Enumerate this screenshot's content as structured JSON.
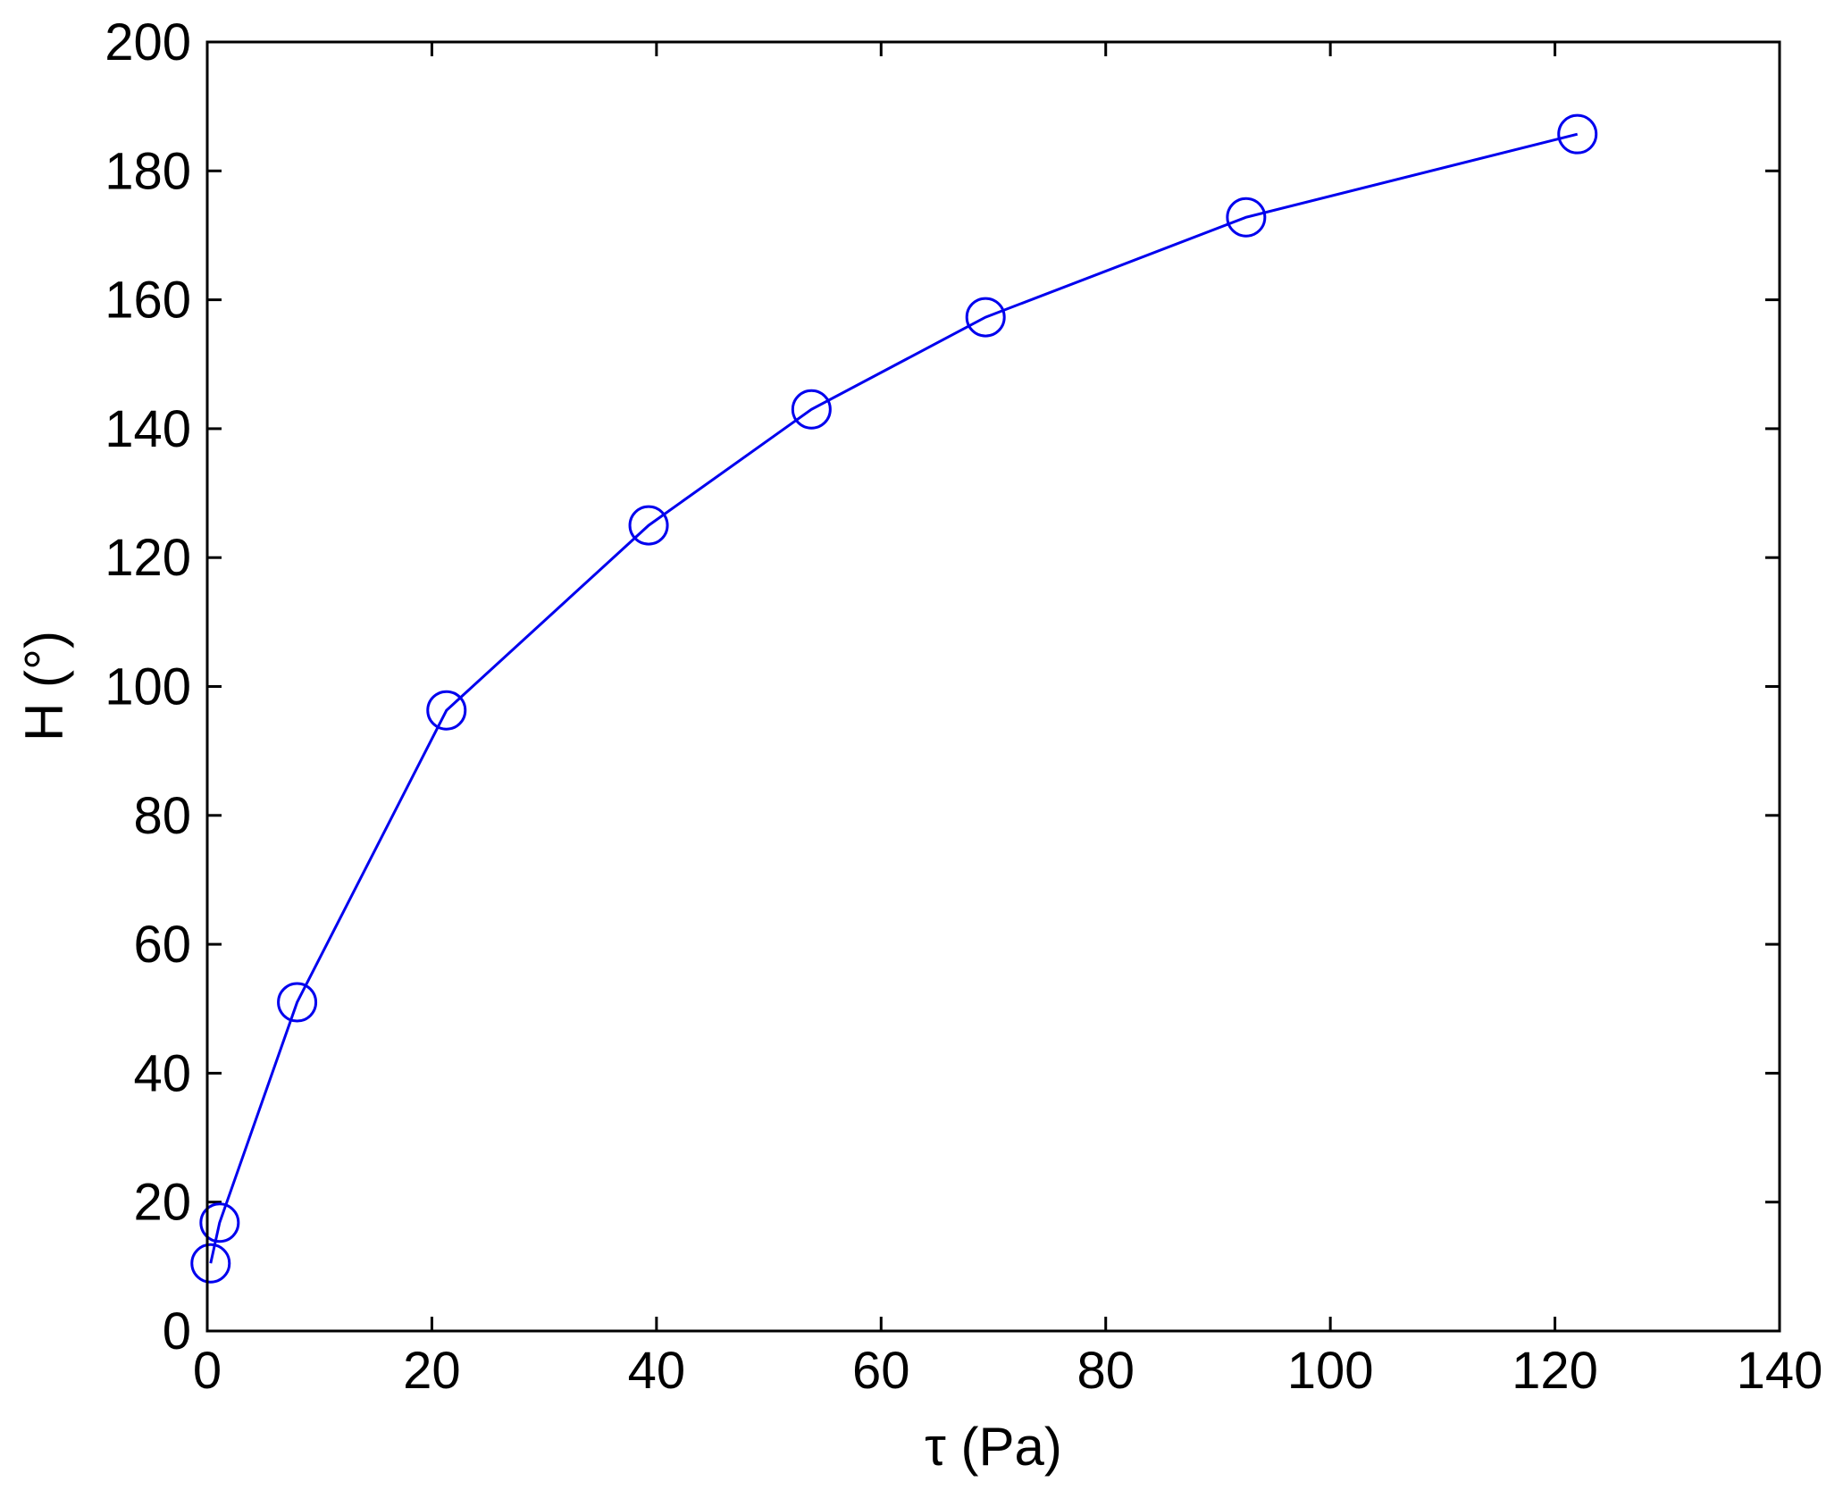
{
  "chart_data": {
    "type": "line",
    "title": "",
    "xlabel": "τ (Pa)",
    "ylabel": "H (°)",
    "xlim": [
      0,
      140
    ],
    "ylim": [
      0,
      200
    ],
    "xticks": [
      0,
      20,
      40,
      60,
      80,
      100,
      120,
      140
    ],
    "yticks": [
      0,
      20,
      40,
      60,
      80,
      100,
      120,
      140,
      160,
      180,
      200
    ],
    "grid": false,
    "legend": "none",
    "series": [
      {
        "color": "#0000ee",
        "marker": "circle-open",
        "x": [
          0.3,
          1.1,
          8.0,
          21.3,
          39.3,
          53.8,
          69.3,
          92.5,
          122.0
        ],
        "y": [
          10.5,
          16.8,
          51.0,
          96.3,
          125.0,
          143.0,
          157.3,
          172.8,
          185.7
        ]
      }
    ]
  }
}
